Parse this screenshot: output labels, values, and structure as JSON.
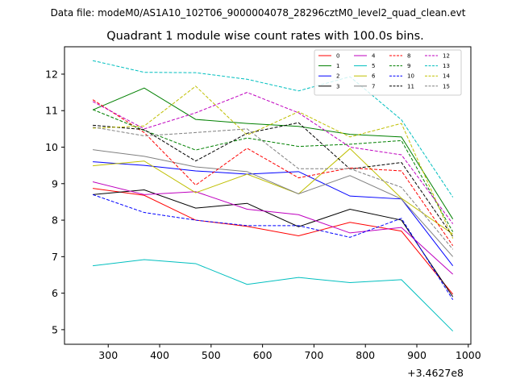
{
  "chart_data": {
    "type": "line",
    "suptitle": "Data file: modeM0/AS1A10_102T06_9000004078_28296cztM0_level2_quad_clean.evt",
    "title": "Quadrant 1 module wise count rates with 100.0s bins.",
    "xlabel": "",
    "ylabel": "",
    "offset_label": "+3.4627e8",
    "x": [
      270,
      370,
      470,
      570,
      670,
      770,
      870,
      970
    ],
    "xlim": [
      215,
      1005
    ],
    "ylim": [
      4.6,
      12.75
    ],
    "xticks": [
      300,
      400,
      500,
      600,
      700,
      800,
      900,
      1000
    ],
    "xtick_labels": [
      "300",
      "400",
      "500",
      "600",
      "700",
      "800",
      "900",
      "1000"
    ],
    "yticks": [
      5,
      6,
      7,
      8,
      9,
      10,
      11,
      12
    ],
    "ytick_labels": [
      "5",
      "6",
      "7",
      "8",
      "9",
      "10",
      "11",
      "12"
    ],
    "grid": false,
    "legend": "top-right",
    "series": [
      {
        "name": "0",
        "color": "#ff0000",
        "style": "solid",
        "values": [
          8.87,
          8.68,
          8.0,
          7.83,
          7.57,
          7.94,
          7.7,
          5.97
        ]
      },
      {
        "name": "1",
        "color": "#008000",
        "style": "solid",
        "values": [
          11.02,
          11.62,
          10.76,
          10.65,
          10.57,
          10.35,
          10.28,
          8.03
        ]
      },
      {
        "name": "2",
        "color": "#0000ff",
        "style": "solid",
        "values": [
          9.6,
          9.5,
          9.35,
          9.26,
          9.33,
          8.66,
          8.58,
          6.75
        ]
      },
      {
        "name": "3",
        "color": "#000000",
        "style": "solid",
        "values": [
          8.7,
          8.83,
          8.33,
          8.46,
          7.82,
          8.3,
          8.0,
          5.9
        ]
      },
      {
        "name": "4",
        "color": "#bf00bf",
        "style": "solid",
        "values": [
          9.05,
          8.7,
          8.78,
          8.3,
          8.15,
          7.65,
          7.8,
          6.52
        ]
      },
      {
        "name": "5",
        "color": "#00bfbf",
        "style": "solid",
        "values": [
          6.75,
          6.92,
          6.81,
          6.24,
          6.43,
          6.29,
          6.37,
          4.96
        ]
      },
      {
        "name": "6",
        "color": "#bfbf00",
        "style": "solid",
        "values": [
          9.49,
          9.62,
          8.75,
          9.26,
          8.72,
          9.96,
          8.6,
          7.62
        ]
      },
      {
        "name": "7",
        "color": "#808080",
        "style": "solid",
        "values": [
          9.93,
          9.75,
          9.46,
          9.33,
          8.72,
          9.22,
          8.58,
          7.0
        ]
      },
      {
        "name": "8",
        "color": "#ff0000",
        "style": "dashed",
        "values": [
          11.3,
          10.4,
          8.96,
          9.97,
          9.16,
          9.43,
          9.35,
          7.3
        ]
      },
      {
        "name": "9",
        "color": "#008000",
        "style": "dashed",
        "values": [
          11.03,
          10.46,
          9.92,
          10.25,
          10.02,
          10.08,
          10.18,
          7.68
        ]
      },
      {
        "name": "10",
        "color": "#0000ff",
        "style": "dashed",
        "values": [
          8.7,
          8.21,
          8.0,
          7.85,
          7.85,
          7.53,
          8.05,
          5.82
        ]
      },
      {
        "name": "11",
        "color": "#000000",
        "style": "dashed",
        "values": [
          10.6,
          10.48,
          9.62,
          10.38,
          10.67,
          9.4,
          9.58,
          7.55
        ]
      },
      {
        "name": "12",
        "color": "#bf00bf",
        "style": "dashed",
        "values": [
          11.25,
          10.5,
          10.94,
          11.5,
          10.94,
          10.0,
          9.79,
          7.9
        ]
      },
      {
        "name": "13",
        "color": "#00bfbf",
        "style": "dashed",
        "values": [
          12.37,
          12.05,
          12.04,
          11.86,
          11.54,
          11.93,
          10.75,
          8.63
        ]
      },
      {
        "name": "14",
        "color": "#bfbf00",
        "style": "dashed",
        "values": [
          10.52,
          10.58,
          11.67,
          10.33,
          10.97,
          10.28,
          10.65,
          7.5
        ]
      },
      {
        "name": "15",
        "color": "#808080",
        "style": "dashed",
        "values": [
          10.55,
          10.31,
          10.4,
          10.5,
          9.41,
          9.41,
          8.9,
          7.2
        ]
      }
    ]
  }
}
